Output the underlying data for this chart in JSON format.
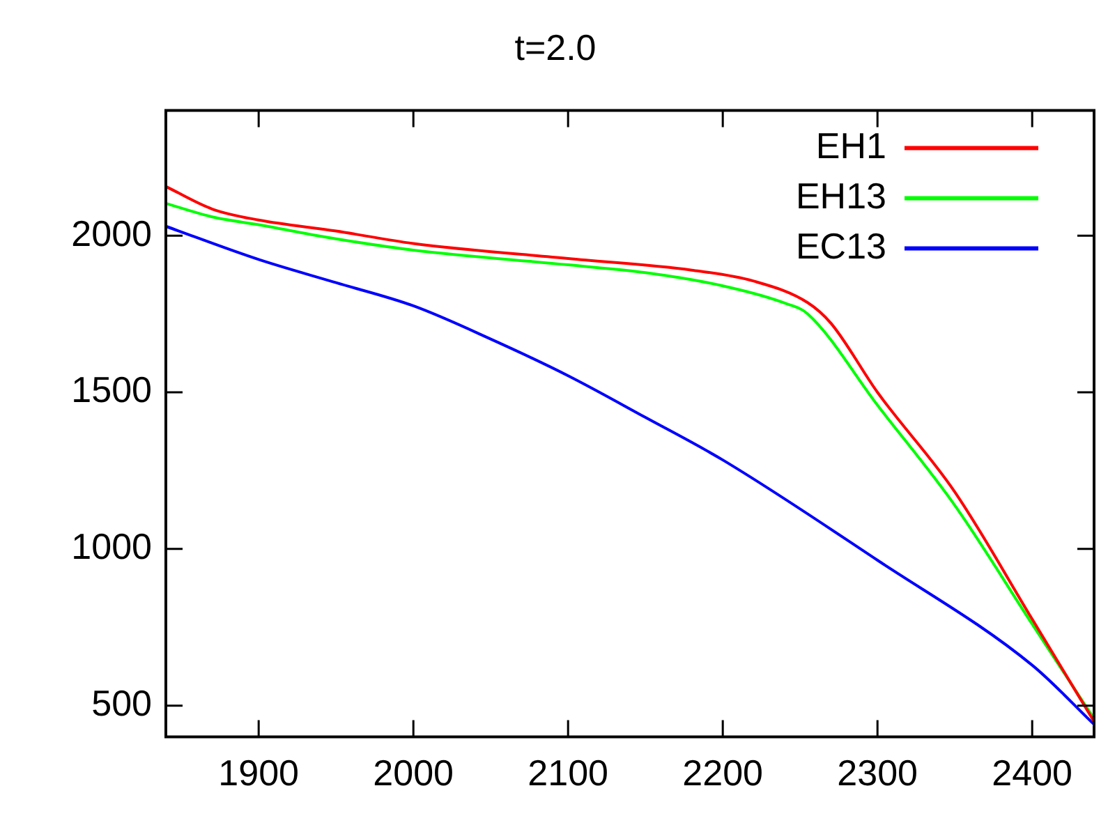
{
  "chart_data": {
    "type": "line",
    "title": "t=2.0",
    "legend": "top right",
    "grid": false,
    "marker": "none",
    "line_style": "solid",
    "xlim": [
      1840,
      2440
    ],
    "xticks": [
      1900,
      2000,
      2100,
      2200,
      2300,
      2400
    ],
    "ylim": [
      400,
      2400
    ],
    "yticks": [
      500,
      1000,
      1500,
      2000
    ],
    "series": [
      {
        "name": "EH1",
        "color": "#ff0000",
        "x": [
          1840,
          1870,
          1900,
          1950,
          2000,
          2100,
          2180,
          2220,
          2255,
          2270,
          2300,
          2350,
          2400,
          2440
        ],
        "values": [
          2157,
          2085,
          2050,
          2015,
          1975,
          1927,
          1890,
          1855,
          1786,
          1720,
          1500,
          1182,
          776,
          449
        ]
      },
      {
        "name": "EH13",
        "color": "#00ff00",
        "x": [
          1840,
          1870,
          1900,
          1950,
          2000,
          2100,
          2150,
          2200,
          2240,
          2255,
          2300,
          2350,
          2400,
          2440
        ],
        "values": [
          2103,
          2060,
          2035,
          1990,
          1954,
          1907,
          1882,
          1840,
          1785,
          1750,
          1459,
          1139,
          760,
          458
        ]
      },
      {
        "name": "EC13",
        "color": "#0000ff",
        "x": [
          1840,
          1900,
          1950,
          2000,
          2050,
          2100,
          2150,
          2200,
          2300,
          2400,
          2440
        ],
        "values": [
          2030,
          1924,
          1850,
          1776,
          1670,
          1553,
          1420,
          1284,
          964,
          629,
          440
        ]
      }
    ]
  }
}
